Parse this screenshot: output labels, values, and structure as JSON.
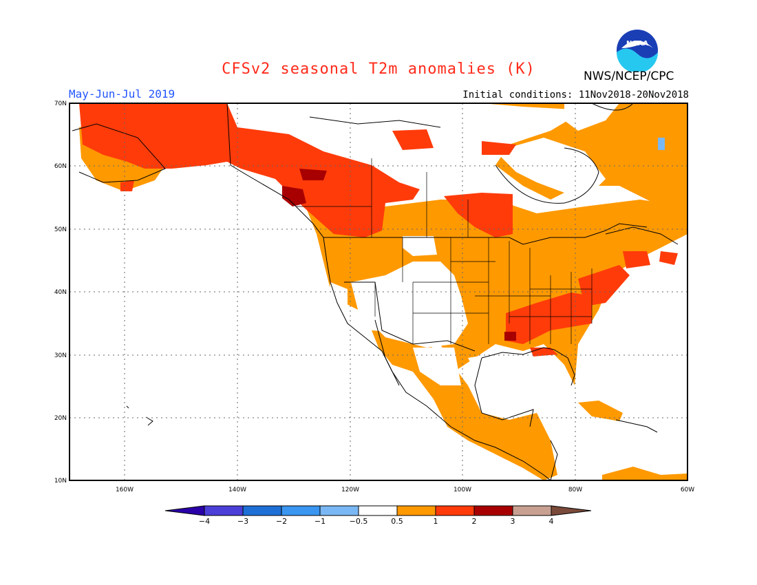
{
  "title": "CFSv2 seasonal T2m anomalies (K)",
  "season": "May-Jun-Jul 2019",
  "initial_conditions": "Initial conditions: 11Nov2018-20Nov2018",
  "agency": "NWS/NCEP/CPC",
  "logo_text": "NOAA",
  "map": {
    "lat_labels": [
      "70N",
      "60N",
      "50N",
      "40N",
      "30N",
      "20N",
      "10N"
    ],
    "lon_labels": [
      "160W",
      "140W",
      "120W",
      "100W",
      "80W",
      "60W"
    ],
    "gridlines": "dotted"
  },
  "colorbar": {
    "labels": [
      "-4",
      "-3",
      "-2",
      "-1",
      "-0.5",
      "0.5",
      "1",
      "2",
      "3",
      "4"
    ],
    "colors": [
      "#2a00a8",
      "#4b3fd8",
      "#1e6fd6",
      "#3a96f0",
      "#7ab8f5",
      "#ffffff",
      "#ff9900",
      "#ff3b0a",
      "#a80000",
      "#c8a091",
      "#7a4a3a"
    ],
    "units": "K"
  },
  "colors": {
    "anom_0_5_1": "#ff9900",
    "anom_1_2": "#ff3b0a",
    "anom_2_3": "#a80000",
    "anom_neg": "#7ab8f5",
    "title": "#ff2a1a",
    "season": "#2255ff"
  }
}
